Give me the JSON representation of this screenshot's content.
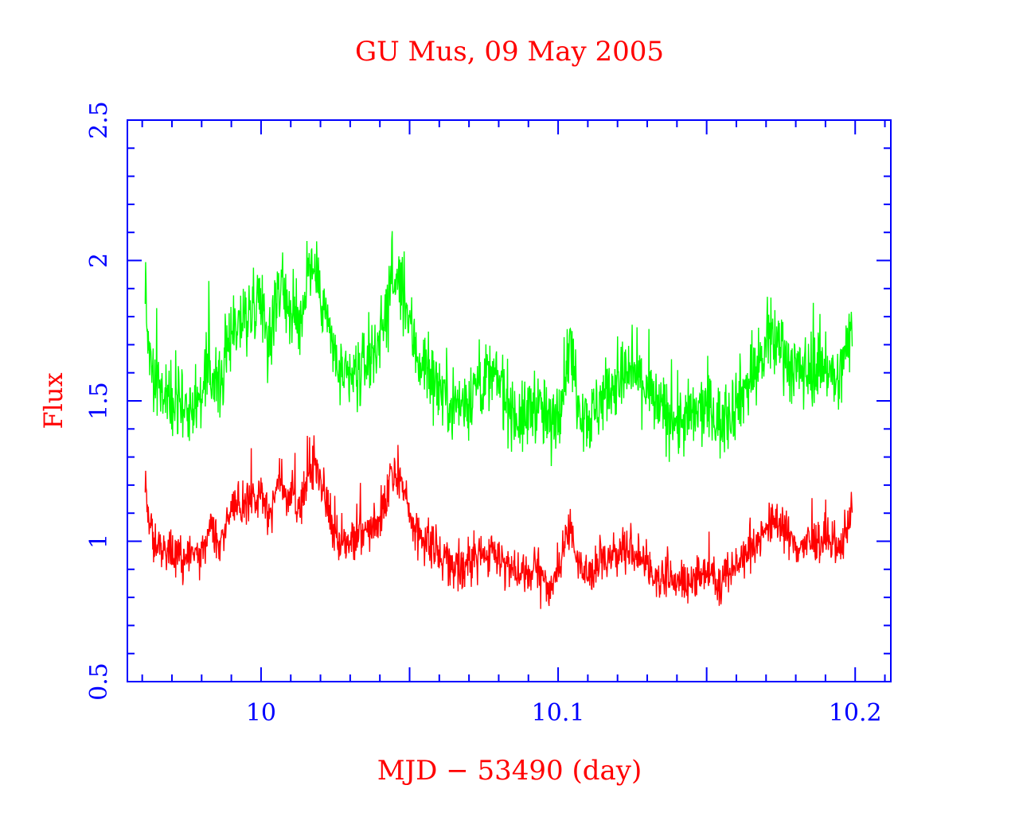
{
  "chart_data": {
    "type": "line",
    "title": "GU Mus, 09 May 2005",
    "xlabel": "MJD − 53490 (day)",
    "ylabel": "Flux",
    "xlim": [
      9.955,
      10.212
    ],
    "ylim": [
      0.5,
      2.5
    ],
    "x_ticks": [
      10,
      10.1,
      10.2
    ],
    "x_tick_labels": [
      "10",
      "10.1",
      "10.2"
    ],
    "y_ticks": [
      0.5,
      1,
      1.5,
      2,
      2.5
    ],
    "y_tick_labels": [
      "0.5",
      "1",
      "1.5",
      "2",
      "2.5"
    ],
    "grid": false,
    "legend": "none",
    "colors": {
      "axes": "#0000ff",
      "text": "#ff0000",
      "series_upper": "#00ff00",
      "series_lower": "#ff0000"
    },
    "series": [
      {
        "color": "#00ff00",
        "trend": [
          [
            9.961,
            1.93
          ],
          [
            9.962,
            1.72
          ],
          [
            9.964,
            1.55
          ],
          [
            9.968,
            1.5
          ],
          [
            9.972,
            1.52
          ],
          [
            9.976,
            1.48
          ],
          [
            9.98,
            1.52
          ],
          [
            9.983,
            1.62
          ],
          [
            9.986,
            1.55
          ],
          [
            9.99,
            1.76
          ],
          [
            9.995,
            1.8
          ],
          [
            10.0,
            1.88
          ],
          [
            10.003,
            1.7
          ],
          [
            10.006,
            1.92
          ],
          [
            10.009,
            1.85
          ],
          [
            10.013,
            1.75
          ],
          [
            10.016,
            1.98
          ],
          [
            10.019,
            1.94
          ],
          [
            10.022,
            1.8
          ],
          [
            10.025,
            1.64
          ],
          [
            10.029,
            1.56
          ],
          [
            10.033,
            1.6
          ],
          [
            10.037,
            1.66
          ],
          [
            10.041,
            1.76
          ],
          [
            10.044,
            1.93
          ],
          [
            10.047,
            1.9
          ],
          [
            10.05,
            1.77
          ],
          [
            10.053,
            1.65
          ],
          [
            10.056,
            1.61
          ],
          [
            10.06,
            1.55
          ],
          [
            10.064,
            1.5
          ],
          [
            10.068,
            1.48
          ],
          [
            10.072,
            1.55
          ],
          [
            10.076,
            1.58
          ],
          [
            10.08,
            1.57
          ],
          [
            10.084,
            1.48
          ],
          [
            10.088,
            1.42
          ],
          [
            10.092,
            1.5
          ],
          [
            10.095,
            1.45
          ],
          [
            10.098,
            1.4
          ],
          [
            10.101,
            1.52
          ],
          [
            10.104,
            1.7
          ],
          [
            10.107,
            1.5
          ],
          [
            10.111,
            1.43
          ],
          [
            10.115,
            1.52
          ],
          [
            10.12,
            1.57
          ],
          [
            10.125,
            1.6
          ],
          [
            10.129,
            1.56
          ],
          [
            10.133,
            1.48
          ],
          [
            10.137,
            1.45
          ],
          [
            10.141,
            1.42
          ],
          [
            10.145,
            1.44
          ],
          [
            10.15,
            1.48
          ],
          [
            10.155,
            1.42
          ],
          [
            10.16,
            1.5
          ],
          [
            10.165,
            1.58
          ],
          [
            10.17,
            1.68
          ],
          [
            10.175,
            1.72
          ],
          [
            10.178,
            1.62
          ],
          [
            10.182,
            1.6
          ],
          [
            10.186,
            1.62
          ],
          [
            10.19,
            1.64
          ],
          [
            10.194,
            1.55
          ],
          [
            10.197,
            1.68
          ],
          [
            10.199,
            1.78
          ]
        ]
      },
      {
        "color": "#ff0000",
        "trend": [
          [
            9.961,
            1.2
          ],
          [
            9.962,
            1.1
          ],
          [
            9.964,
            0.99
          ],
          [
            9.968,
            0.95
          ],
          [
            9.972,
            0.96
          ],
          [
            9.976,
            0.93
          ],
          [
            9.98,
            0.96
          ],
          [
            9.983,
            1.08
          ],
          [
            9.986,
            0.98
          ],
          [
            9.99,
            1.12
          ],
          [
            9.995,
            1.14
          ],
          [
            10.0,
            1.17
          ],
          [
            10.003,
            1.07
          ],
          [
            10.006,
            1.22
          ],
          [
            10.009,
            1.18
          ],
          [
            10.013,
            1.1
          ],
          [
            10.016,
            1.25
          ],
          [
            10.019,
            1.24
          ],
          [
            10.022,
            1.16
          ],
          [
            10.025,
            1.02
          ],
          [
            10.029,
            0.98
          ],
          [
            10.033,
            1.01
          ],
          [
            10.037,
            1.04
          ],
          [
            10.041,
            1.1
          ],
          [
            10.044,
            1.24
          ],
          [
            10.047,
            1.21
          ],
          [
            10.05,
            1.1
          ],
          [
            10.053,
            1.01
          ],
          [
            10.056,
            1.0
          ],
          [
            10.06,
            0.96
          ],
          [
            10.064,
            0.92
          ],
          [
            10.068,
            0.91
          ],
          [
            10.072,
            0.94
          ],
          [
            10.076,
            0.95
          ],
          [
            10.08,
            0.96
          ],
          [
            10.084,
            0.9
          ],
          [
            10.088,
            0.86
          ],
          [
            10.092,
            0.9
          ],
          [
            10.095,
            0.86
          ],
          [
            10.098,
            0.84
          ],
          [
            10.101,
            0.93
          ],
          [
            10.104,
            1.05
          ],
          [
            10.107,
            0.92
          ],
          [
            10.111,
            0.88
          ],
          [
            10.115,
            0.93
          ],
          [
            10.12,
            0.96
          ],
          [
            10.125,
            0.97
          ],
          [
            10.129,
            0.92
          ],
          [
            10.133,
            0.88
          ],
          [
            10.137,
            0.87
          ],
          [
            10.141,
            0.85
          ],
          [
            10.145,
            0.86
          ],
          [
            10.15,
            0.9
          ],
          [
            10.155,
            0.86
          ],
          [
            10.16,
            0.92
          ],
          [
            10.165,
            0.98
          ],
          [
            10.17,
            1.05
          ],
          [
            10.175,
            1.08
          ],
          [
            10.178,
            1.0
          ],
          [
            10.182,
            0.98
          ],
          [
            10.186,
            1.0
          ],
          [
            10.19,
            1.01
          ],
          [
            10.194,
            0.95
          ],
          [
            10.197,
            1.05
          ],
          [
            10.199,
            1.13
          ]
        ]
      }
    ]
  }
}
